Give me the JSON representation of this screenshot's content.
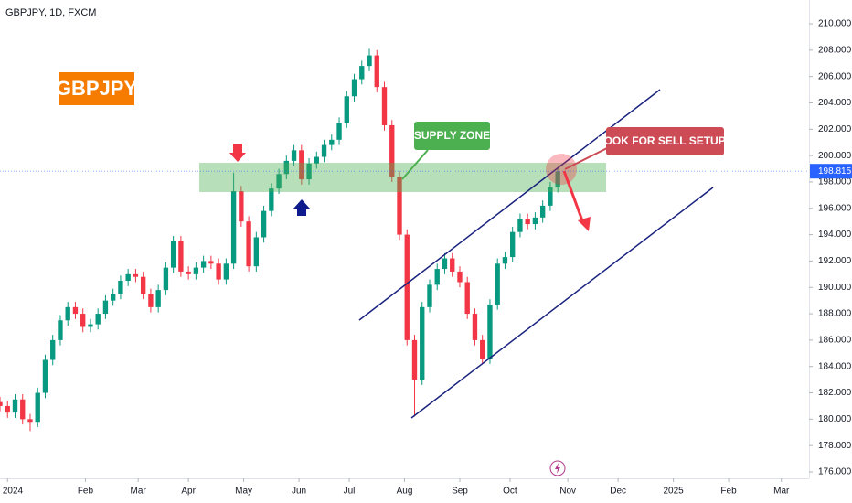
{
  "chart_data": {
    "type": "candlestick",
    "title": "GBPJPY, 1D, FXCM",
    "symbol_label": "GBPJPY",
    "annotations": [
      "SUPPLY ZONE",
      "LOOK FOR SELL SETUPS"
    ],
    "up_color": "#089981",
    "down_color": "#f23645",
    "x": [
      -12,
      -9,
      -6,
      -3,
      0,
      3,
      6,
      9,
      12,
      15,
      18,
      21,
      24,
      27,
      30,
      33,
      36,
      39,
      42,
      45,
      48,
      51,
      54,
      57,
      60,
      63,
      66,
      69,
      72,
      75,
      78,
      81,
      84,
      87,
      90,
      93,
      96,
      99,
      102,
      105,
      108,
      111,
      114,
      117,
      120,
      123,
      126,
      129,
      132,
      135,
      138,
      141,
      144,
      147,
      150,
      153,
      156,
      159,
      162,
      165,
      168,
      171,
      174,
      177,
      180,
      183,
      186,
      189,
      192,
      195,
      198,
      201,
      204,
      207,
      210
    ],
    "open": [
      181.3,
      181,
      180.5,
      181.5,
      180,
      179.8,
      182,
      184.5,
      186,
      187.5,
      188.5,
      188,
      187,
      187.2,
      188,
      189,
      189.5,
      190.5,
      191,
      190.8,
      189.5,
      188.5,
      189.8,
      191.5,
      193.5,
      191.2,
      191,
      191.5,
      192,
      191.8,
      190.6,
      191.8,
      197.3,
      195,
      191.6,
      193.8,
      195.8,
      197.5,
      198.6,
      199.6,
      200.4,
      198.2,
      199.4,
      199.9,
      200.8,
      201.2,
      202.5,
      204.5,
      205.8,
      206.8,
      207.6,
      205.2,
      202.3,
      198.4,
      194,
      186,
      183,
      188.5,
      190.2,
      191.4,
      192.2,
      191.2,
      190.4,
      188,
      186,
      184.6,
      188.7,
      191.8,
      192.3,
      194.2,
      195.2,
      194.8,
      195.3,
      196.2,
      197.6
    ],
    "high": [
      181.7,
      181.4,
      181.9,
      181.9,
      180.4,
      182.4,
      184.9,
      186.4,
      187.9,
      188.9,
      188.9,
      188.4,
      187.6,
      188.4,
      189.4,
      189.9,
      190.9,
      191.4,
      191.4,
      191.2,
      189.9,
      190.2,
      191.9,
      193.9,
      193.9,
      191.6,
      191.9,
      192.4,
      192.4,
      192.2,
      192.2,
      198.7,
      197.7,
      195.4,
      194.2,
      196.2,
      197.9,
      199,
      200,
      200.8,
      200.8,
      199.8,
      200.3,
      201.2,
      201.6,
      202.9,
      204.9,
      206.2,
      207.2,
      208.1,
      208,
      205.6,
      202.7,
      198.8,
      194.4,
      186.4,
      188.9,
      190.6,
      191.8,
      192.6,
      192.6,
      191.6,
      190.8,
      188.4,
      186.4,
      189.1,
      192.2,
      192.7,
      194.6,
      195.6,
      195.6,
      195.7,
      196.6,
      198,
      199.1
    ],
    "low": [
      180.6,
      180.1,
      180.1,
      179.6,
      179.1,
      179.4,
      181.6,
      184.1,
      185.6,
      187.1,
      187.6,
      186.6,
      186.6,
      186.8,
      187.6,
      188.6,
      189.1,
      190.1,
      190.4,
      189.1,
      188.1,
      188.1,
      189.4,
      191.1,
      190.8,
      190.6,
      190.6,
      191.1,
      191.4,
      190.2,
      190.2,
      191.4,
      194.6,
      191.2,
      191.2,
      193.4,
      195.4,
      197.1,
      198.2,
      199.2,
      197.8,
      197.8,
      199,
      199.5,
      200.4,
      200.8,
      202.1,
      204.1,
      205.4,
      206.4,
      204.8,
      201.9,
      198,
      193.6,
      185.6,
      180.2,
      182.6,
      188.1,
      189.8,
      191,
      190.8,
      190,
      187.6,
      185.6,
      184.2,
      184.2,
      188.3,
      191.4,
      191.9,
      193.8,
      194.4,
      194.4,
      194.9,
      195.8,
      197.2
    ],
    "close": [
      181,
      180.5,
      181.5,
      180,
      179.8,
      182,
      184.5,
      186,
      187.5,
      188.5,
      188,
      187,
      187.2,
      188,
      189,
      189.5,
      190.5,
      191,
      190.8,
      189.5,
      188.5,
      189.8,
      191.5,
      193.5,
      191.2,
      191,
      191.5,
      192,
      191.8,
      190.6,
      191.8,
      197.3,
      195,
      191.6,
      193.8,
      195.8,
      197.5,
      198.6,
      199.6,
      200.4,
      198.2,
      199.4,
      199.9,
      200.8,
      201.2,
      202.5,
      204.5,
      205.8,
      206.8,
      207.6,
      205.2,
      202.3,
      198.4,
      194,
      186,
      183,
      188.5,
      190.2,
      191.4,
      192.2,
      191.2,
      190.4,
      188,
      186,
      184.6,
      188.7,
      191.8,
      192.3,
      194.2,
      195.2,
      194.8,
      195.3,
      196.2,
      197.6,
      198.8
    ],
    "last_price": 198.815,
    "xlim": [
      -12,
      310
    ],
    "xticks": [
      {
        "value": -9,
        "label": "2024"
      },
      {
        "value": 22,
        "label": "Feb"
      },
      {
        "value": 43,
        "label": "Mar"
      },
      {
        "value": 63,
        "label": "Apr"
      },
      {
        "value": 85,
        "label": "May"
      },
      {
        "value": 107,
        "label": "Jun"
      },
      {
        "value": 127,
        "label": "Jul"
      },
      {
        "value": 149,
        "label": "Aug"
      },
      {
        "value": 171,
        "label": "Sep"
      },
      {
        "value": 191,
        "label": "Oct"
      },
      {
        "value": 214,
        "label": "Nov"
      },
      {
        "value": 234,
        "label": "Dec"
      },
      {
        "value": 256,
        "label": "2025"
      },
      {
        "value": 278,
        "label": "Feb"
      },
      {
        "value": 299,
        "label": "Mar"
      }
    ],
    "ylim": [
      176,
      210
    ],
    "yticks": [
      {
        "value": 176,
        "label": "176.000"
      },
      {
        "value": 178,
        "label": "178.000"
      },
      {
        "value": 180,
        "label": "180.000"
      },
      {
        "value": 182,
        "label": "182.000"
      },
      {
        "value": 184,
        "label": "184.000"
      },
      {
        "value": 186,
        "label": "186.000"
      },
      {
        "value": 188,
        "label": "188.000"
      },
      {
        "value": 190,
        "label": "190.000"
      },
      {
        "value": 192,
        "label": "192.000"
      },
      {
        "value": 194,
        "label": "194.000"
      },
      {
        "value": 196,
        "label": "196.000"
      },
      {
        "value": 198,
        "label": "198.000"
      },
      {
        "value": 200,
        "label": "200.000"
      },
      {
        "value": 202,
        "label": "202.000"
      },
      {
        "value": 204,
        "label": "204.000"
      },
      {
        "value": 206,
        "label": "206.000"
      },
      {
        "value": 208,
        "label": "208.000"
      },
      {
        "value": 210,
        "label": "210.000"
      }
    ]
  }
}
